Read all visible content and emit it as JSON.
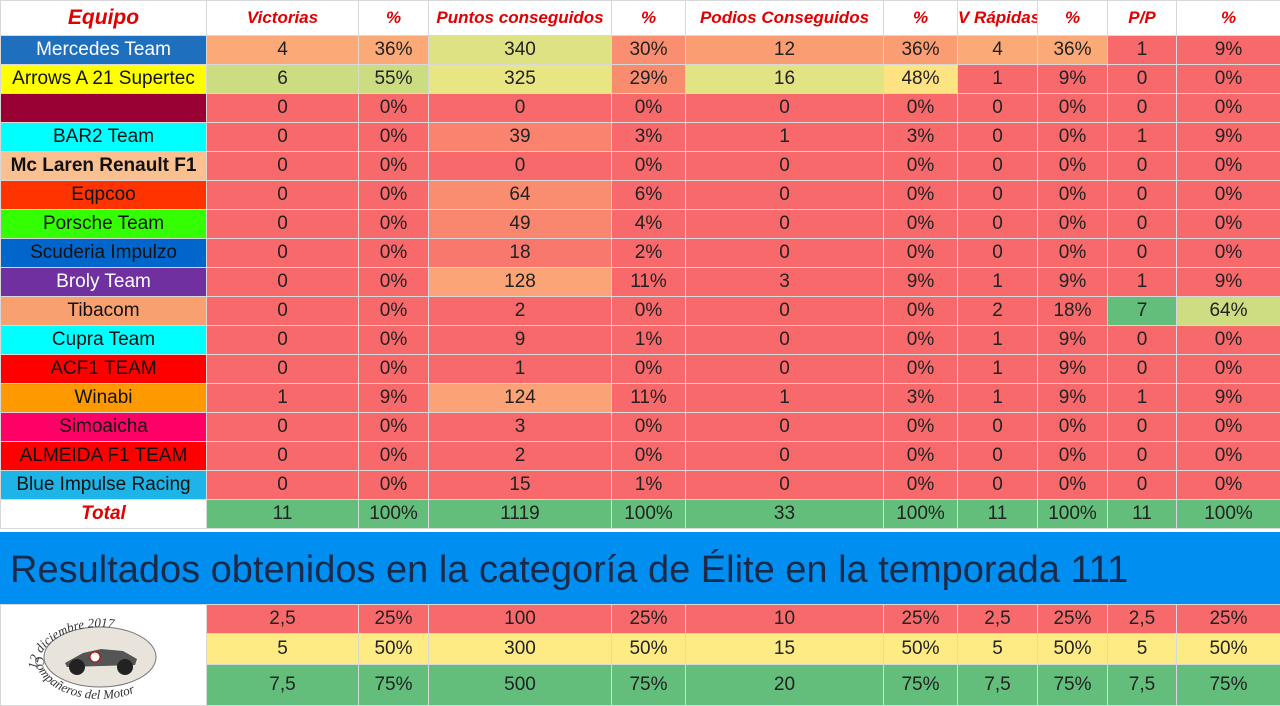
{
  "headers": [
    "Equipo",
    "Victorias",
    "%",
    "Puntos conseguidos",
    "%",
    "Podios Conseguidos",
    "%",
    "V Rápidas",
    "%",
    "P/P",
    "%"
  ],
  "teams": [
    {
      "name": "Mercedes Team",
      "bg": "#1f6fbf",
      "fg": "#ffffff",
      "bold": false,
      "cells": [
        "4",
        "36%",
        "340",
        "30%",
        "12",
        "36%",
        "4",
        "36%",
        "1",
        "9%"
      ],
      "colors": [
        "#fbaa77",
        "#fbaa77",
        "#dfe282",
        "#f98f70",
        "#fa9d73",
        "#fa9d73",
        "#fbaa77",
        "#fbaa77",
        "#f8696b",
        "#f8696b"
      ]
    },
    {
      "name": "Arrows A 21 Supertec",
      "bg": "#ffff00",
      "fg": "#111111",
      "bold": false,
      "cells": [
        "6",
        "55%",
        "325",
        "29%",
        "16",
        "48%",
        "1",
        "9%",
        "0",
        "0%"
      ],
      "colors": [
        "#cbdc81",
        "#cbdc81",
        "#e8e583",
        "#f98c6f",
        "#e2e383",
        "#fee382",
        "#f8696b",
        "#f8696b",
        "#f8696b",
        "#f8696b"
      ]
    },
    {
      "name": "",
      "bg": "#990033",
      "fg": "#ffffff",
      "bold": false,
      "cells": [
        "0",
        "0%",
        "0",
        "0%",
        "0",
        "0%",
        "0",
        "0%",
        "0",
        "0%"
      ],
      "colors": [
        "#f8696b",
        "#f8696b",
        "#f8696b",
        "#f8696b",
        "#f8696b",
        "#f8696b",
        "#f8696b",
        "#f8696b",
        "#f8696b",
        "#f8696b"
      ]
    },
    {
      "name": "BAR2 Team",
      "bg": "#00ffff",
      "fg": "#111111",
      "bold": false,
      "cells": [
        "0",
        "0%",
        "39",
        "3%",
        "1",
        "3%",
        "0",
        "0%",
        "1",
        "9%"
      ],
      "colors": [
        "#f8696b",
        "#f8696b",
        "#f9836e",
        "#f8696b",
        "#f8696b",
        "#f8696b",
        "#f8696b",
        "#f8696b",
        "#f8696b",
        "#f8696b"
      ]
    },
    {
      "name": "Mc Laren Renault F1",
      "bg": "#fac090",
      "fg": "#111111",
      "bold": true,
      "cells": [
        "0",
        "0%",
        "0",
        "0%",
        "0",
        "0%",
        "0",
        "0%",
        "0",
        "0%"
      ],
      "colors": [
        "#f8696b",
        "#f8696b",
        "#f8696b",
        "#f8696b",
        "#f8696b",
        "#f8696b",
        "#f8696b",
        "#f8696b",
        "#f8696b",
        "#f8696b"
      ]
    },
    {
      "name": "Eqpcoo",
      "bg": "#ff3300",
      "fg": "#111111",
      "bold": false,
      "cells": [
        "0",
        "0%",
        "64",
        "6%",
        "0",
        "0%",
        "0",
        "0%",
        "0",
        "0%"
      ],
      "colors": [
        "#f8696b",
        "#f8696b",
        "#fa8c70",
        "#f8696b",
        "#f8696b",
        "#f8696b",
        "#f8696b",
        "#f8696b",
        "#f8696b",
        "#f8696b"
      ]
    },
    {
      "name": "Porsche Team",
      "bg": "#33ff00",
      "fg": "#111111",
      "bold": false,
      "cells": [
        "0",
        "0%",
        "49",
        "4%",
        "0",
        "0%",
        "0",
        "0%",
        "0",
        "0%"
      ],
      "colors": [
        "#f8696b",
        "#f8696b",
        "#f9866f",
        "#f8696b",
        "#f8696b",
        "#f8696b",
        "#f8696b",
        "#f8696b",
        "#f8696b",
        "#f8696b"
      ]
    },
    {
      "name": "Scuderia Impulzo",
      "bg": "#0066cc",
      "fg": "#111111",
      "bold": false,
      "cells": [
        "0",
        "0%",
        "18",
        "2%",
        "0",
        "0%",
        "0",
        "0%",
        "0",
        "0%"
      ],
      "colors": [
        "#f8696b",
        "#f8696b",
        "#f8786d",
        "#f8696b",
        "#f8696b",
        "#f8696b",
        "#f8696b",
        "#f8696b",
        "#f8696b",
        "#f8696b"
      ]
    },
    {
      "name": "Broly Team",
      "bg": "#7030a0",
      "fg": "#ffffff",
      "bold": false,
      "cells": [
        "0",
        "0%",
        "128",
        "11%",
        "3",
        "9%",
        "1",
        "9%",
        "1",
        "9%"
      ],
      "colors": [
        "#f8696b",
        "#f8696b",
        "#fba477",
        "#f8696b",
        "#f8696b",
        "#f8696b",
        "#f8696b",
        "#f8696b",
        "#f8696b",
        "#f8696b"
      ]
    },
    {
      "name": "Tibacom",
      "bg": "#f9a070",
      "fg": "#111111",
      "bold": false,
      "cells": [
        "0",
        "0%",
        "2",
        "0%",
        "0",
        "0%",
        "2",
        "18%",
        "7",
        "64%"
      ],
      "colors": [
        "#f8696b",
        "#f8696b",
        "#f8696b",
        "#f8696b",
        "#f8696b",
        "#f8696b",
        "#f8696b",
        "#f8696b",
        "#63be7b",
        "#cfdd82"
      ]
    },
    {
      "name": "Cupra Team",
      "bg": "#00ffff",
      "fg": "#111111",
      "bold": false,
      "cells": [
        "0",
        "0%",
        "9",
        "1%",
        "0",
        "0%",
        "1",
        "9%",
        "0",
        "0%"
      ],
      "colors": [
        "#f8696b",
        "#f8696b",
        "#f8696b",
        "#f8696b",
        "#f8696b",
        "#f8696b",
        "#f8696b",
        "#f8696b",
        "#f8696b",
        "#f8696b"
      ]
    },
    {
      "name": "ACF1 TEAM",
      "bg": "#ff0000",
      "fg": "#111111",
      "bold": false,
      "cells": [
        "0",
        "0%",
        "1",
        "0%",
        "0",
        "0%",
        "1",
        "9%",
        "0",
        "0%"
      ],
      "colors": [
        "#f8696b",
        "#f8696b",
        "#f8696b",
        "#f8696b",
        "#f8696b",
        "#f8696b",
        "#f8696b",
        "#f8696b",
        "#f8696b",
        "#f8696b"
      ]
    },
    {
      "name": "Winabi",
      "bg": "#ff9900",
      "fg": "#111111",
      "bold": false,
      "cells": [
        "1",
        "9%",
        "124",
        "11%",
        "1",
        "3%",
        "1",
        "9%",
        "1",
        "9%"
      ],
      "colors": [
        "#f8696b",
        "#f8696b",
        "#fba376",
        "#f8696b",
        "#f8696b",
        "#f8696b",
        "#f8696b",
        "#f8696b",
        "#f8696b",
        "#f8696b"
      ]
    },
    {
      "name": "Simoaicha",
      "bg": "#ff0066",
      "fg": "#111111",
      "bold": false,
      "cells": [
        "0",
        "0%",
        "3",
        "0%",
        "0",
        "0%",
        "0",
        "0%",
        "0",
        "0%"
      ],
      "colors": [
        "#f8696b",
        "#f8696b",
        "#f8696b",
        "#f8696b",
        "#f8696b",
        "#f8696b",
        "#f8696b",
        "#f8696b",
        "#f8696b",
        "#f8696b"
      ]
    },
    {
      "name": "ALMEIDA F1 TEAM",
      "bg": "#ff0000",
      "fg": "#111111",
      "bold": false,
      "cells": [
        "0",
        "0%",
        "2",
        "0%",
        "0",
        "0%",
        "0",
        "0%",
        "0",
        "0%"
      ],
      "colors": [
        "#f8696b",
        "#f8696b",
        "#f8696b",
        "#f8696b",
        "#f8696b",
        "#f8696b",
        "#f8696b",
        "#f8696b",
        "#f8696b",
        "#f8696b"
      ]
    },
    {
      "name": "Blue Impulse Racing",
      "bg": "#1eb4e8",
      "fg": "#111111",
      "bold": false,
      "cells": [
        "0",
        "0%",
        "15",
        "1%",
        "0",
        "0%",
        "0",
        "0%",
        "0",
        "0%"
      ],
      "colors": [
        "#f8696b",
        "#f8696b",
        "#f8696b",
        "#f8696b",
        "#f8696b",
        "#f8696b",
        "#f8696b",
        "#f8696b",
        "#f8696b",
        "#f8696b"
      ]
    }
  ],
  "total": {
    "label": "Total",
    "cells": [
      "11",
      "100%",
      "1119",
      "100%",
      "33",
      "100%",
      "11",
      "100%",
      "11",
      "100%"
    ]
  },
  "banner": "Resultados obtenidos en la categoría de Élite en la temporada 111",
  "logo": {
    "top_text": "12 diciembre 2017",
    "bottom_text": "Compañeros del Motor"
  },
  "thresholds": [
    {
      "bg": "#f8696b",
      "cells": [
        "2,5",
        "25%",
        "100",
        "25%",
        "10",
        "25%",
        "2,5",
        "25%",
        "2,5",
        "25%"
      ]
    },
    {
      "bg": "#ffeb84",
      "cells": [
        "5",
        "50%",
        "300",
        "50%",
        "15",
        "50%",
        "5",
        "50%",
        "5",
        "50%"
      ]
    },
    {
      "bg": "#63be7b",
      "cells": [
        "7,5",
        "75%",
        "500",
        "75%",
        "20",
        "75%",
        "7,5",
        "75%",
        "7,5",
        "75%"
      ]
    }
  ]
}
